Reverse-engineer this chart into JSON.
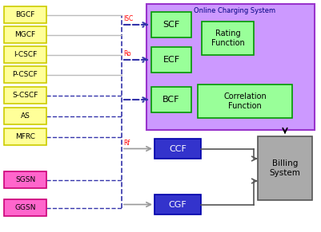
{
  "title": "Online Charging System",
  "yellow_labels": [
    "BGCF",
    "MGCF",
    "I-CSCF",
    "P-CSCF",
    "S-CSCF",
    "AS",
    "MFRC"
  ],
  "pink_labels": [
    "SGSN",
    "GGSN"
  ],
  "green_labels": [
    "SCF",
    "ECF",
    "BCF"
  ],
  "rating_label": "Rating\nFunction",
  "corr_label": "Correlation\nFunction",
  "ccf_label": "CCF",
  "cgf_label": "CGF",
  "billing_label": "Billing\nSystem",
  "isc_label": "ISC",
  "ro_label": "Ro",
  "rf_label": "Rf",
  "yellow_fill": "#FFFF99",
  "yellow_edge": "#CCCC00",
  "pink_fill": "#FF66CC",
  "pink_edge": "#CC0077",
  "green_fill": "#99FF99",
  "green_edge": "#009900",
  "blue_fill": "#3333CC",
  "blue_edge": "#0000AA",
  "billing_fill": "#AAAAAA",
  "billing_edge": "#555555",
  "purple_fill": "#CC99FF",
  "purple_edge": "#9933CC",
  "dashed_color": "#3333AA",
  "gray_arrow": "#999999",
  "red_label": "#FF0000",
  "black": "#000000",
  "navy": "#000080"
}
